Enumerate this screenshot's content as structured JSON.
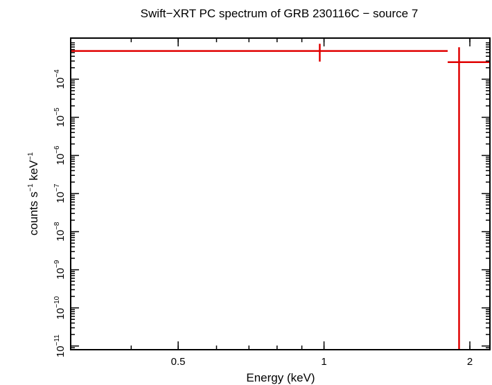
{
  "chart_data": {
    "type": "scatter",
    "title": "Swift−XRT PC spectrum of GRB 230116C − source 7",
    "xlabel": "Energy (keV)",
    "ylabel_parts": [
      "counts s",
      "−1",
      " keV",
      "−1"
    ],
    "x_scale": "log",
    "y_scale": "log",
    "xlim": [
      0.3,
      2.2
    ],
    "ylim": [
      8e-12,
      0.0012
    ],
    "x_ticks": [
      {
        "value": 0.5,
        "label": "0.5"
      },
      {
        "value": 1,
        "label": "1"
      },
      {
        "value": 2,
        "label": "2"
      }
    ],
    "y_ticks": [
      {
        "value": 1e-11,
        "base": "10",
        "exp": "−11"
      },
      {
        "value": 1e-10,
        "base": "10",
        "exp": "−10"
      },
      {
        "value": 1e-09,
        "base": "10",
        "exp": "−9"
      },
      {
        "value": 1e-08,
        "base": "10",
        "exp": "−8"
      },
      {
        "value": 1e-07,
        "base": "10",
        "exp": "−7"
      },
      {
        "value": 1e-06,
        "base": "10",
        "exp": "−6"
      },
      {
        "value": 1e-05,
        "base": "10",
        "exp": "−5"
      },
      {
        "value": 0.0001,
        "base": "10",
        "exp": "−4"
      }
    ],
    "series": [
      {
        "color": "#e00000",
        "points": [
          {
            "x": 0.98,
            "x_low": 0.3,
            "x_high": 1.8,
            "y": 0.00055,
            "y_low": 0.00029,
            "y_high": 0.00085
          },
          {
            "x": 1.9,
            "x_low": 1.8,
            "x_high": 2.2,
            "y": 0.00028,
            "y_low": 8e-12,
            "y_high": 0.00069
          }
        ]
      }
    ]
  }
}
